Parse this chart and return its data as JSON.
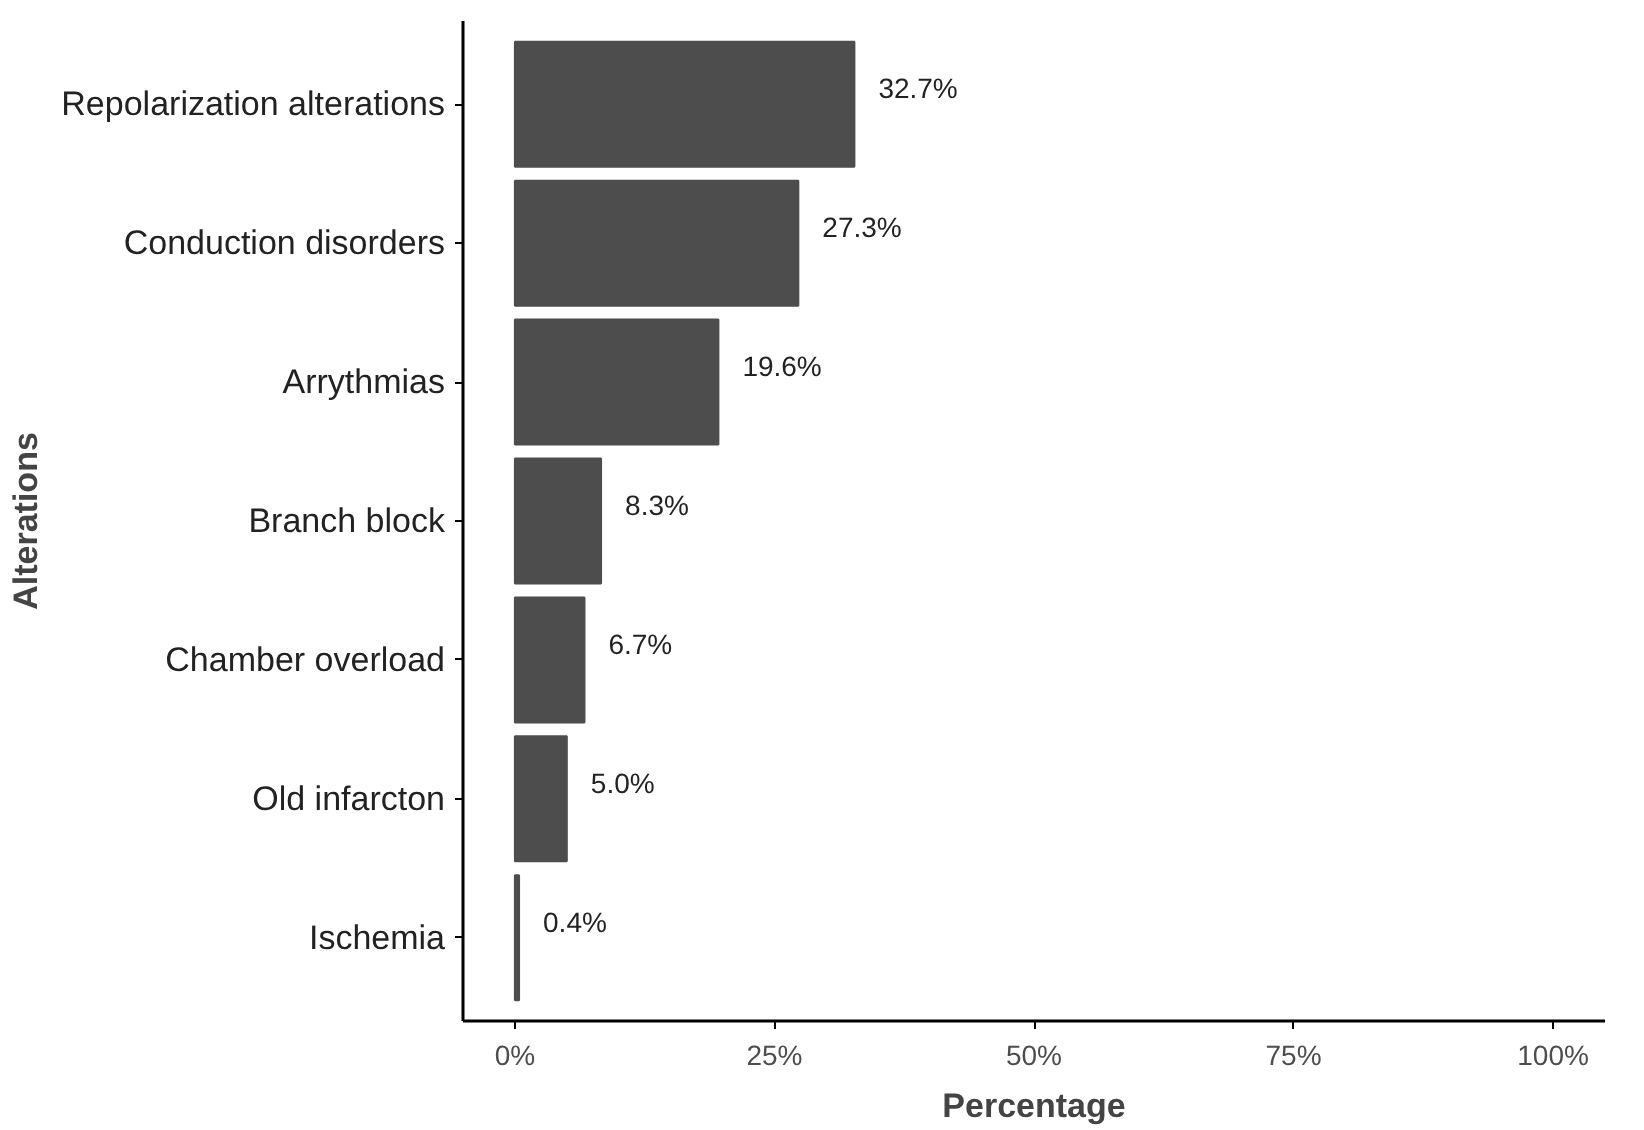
{
  "chart_data": {
    "type": "bar",
    "orientation": "horizontal",
    "xlabel": "Percentage",
    "ylabel": "Alterations",
    "categories": [
      "Repolarization alterations",
      "Conduction disorders",
      "Arrythmias",
      "Branch block",
      "Chamber overload",
      "Old infarcton",
      "Ischemia"
    ],
    "values": [
      32.7,
      27.3,
      19.6,
      8.3,
      6.7,
      5.0,
      0.4
    ],
    "value_labels": [
      "32.7%",
      "27.3%",
      "19.6%",
      "8.3%",
      "6.7%",
      "5.0%",
      "0.4%"
    ],
    "color": "#4d4d4d",
    "xlim": [
      -5,
      105
    ],
    "xticks": [
      {
        "value": 0,
        "label": "0%"
      },
      {
        "value": 25,
        "label": "25%"
      },
      {
        "value": 50,
        "label": "50%"
      },
      {
        "value": 75,
        "label": "75%"
      },
      {
        "value": 100,
        "label": "100%"
      }
    ],
    "grid": false
  }
}
